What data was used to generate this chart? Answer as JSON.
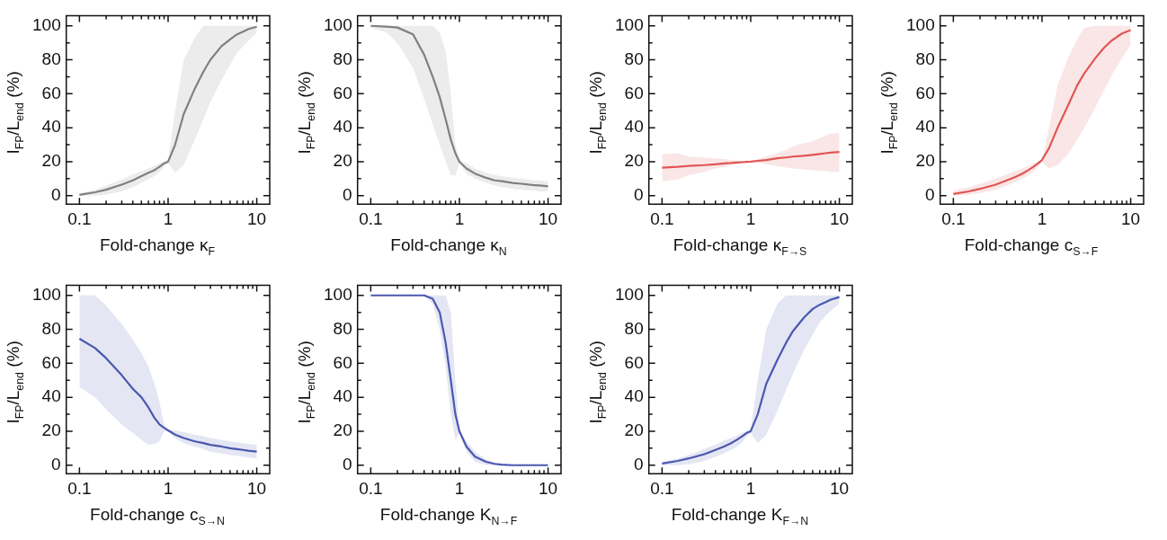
{
  "chart_data": [
    {
      "type": "line",
      "xlabel": "Fold-change κ$_{F}$",
      "ylabel": "I$_{FP}$/L$_{end}$ (%)",
      "log": "x",
      "xlim": [
        0.071,
        14
      ],
      "ylim": [
        -5,
        106
      ],
      "xticks": [
        0.1,
        {
          "value": 0.2,
          "label": null
        },
        {
          "value": 0.3,
          "label": null
        },
        {
          "value": 0.4,
          "label": null
        },
        {
          "value": 0.5,
          "label": null
        },
        {
          "value": 0.6,
          "label": null
        },
        {
          "value": 0.7,
          "label": null
        },
        {
          "value": 0.8,
          "label": null
        },
        {
          "value": 0.9,
          "label": null
        },
        1,
        {
          "value": 2,
          "label": null
        },
        {
          "value": 3,
          "label": null
        },
        {
          "value": 4,
          "label": null
        },
        {
          "value": 5,
          "label": null
        },
        {
          "value": 6,
          "label": null
        },
        {
          "value": 7,
          "label": null
        },
        {
          "value": 8,
          "label": null
        },
        {
          "value": 9,
          "label": null
        },
        10
      ],
      "yticks": [
        0,
        {
          "value": 10,
          "label": null
        },
        20,
        {
          "value": 30,
          "label": null
        },
        40,
        {
          "value": 50,
          "label": null
        },
        60,
        {
          "value": 70,
          "label": null
        },
        80,
        {
          "value": 90,
          "label": null
        },
        100
      ],
      "x": [
        0.1,
        0.15,
        0.2,
        0.3,
        0.4,
        0.5,
        0.6,
        0.7,
        0.8,
        0.9,
        1,
        1.2,
        1.5,
        2,
        2.5,
        3,
        4,
        5,
        6,
        7,
        8,
        10
      ],
      "series": [
        {
          "color": "#808080",
          "values": [
            0.5,
            2,
            3.5,
            6.5,
            9,
            11.5,
            13.5,
            15,
            17,
            19,
            20,
            30,
            48,
            63,
            73,
            80,
            88,
            92,
            95,
            96.5,
            98,
            99.5
          ],
          "lower": [
            0,
            0,
            0.5,
            2.5,
            5,
            7.5,
            9.5,
            11.5,
            14,
            17,
            19,
            13.5,
            18,
            33,
            45,
            55,
            68,
            77,
            84,
            88,
            91,
            96
          ],
          "upper": [
            1.5,
            3.5,
            6,
            9.5,
            12.5,
            14.5,
            16,
            17.5,
            19,
            20,
            21,
            50,
            80,
            93,
            100,
            100,
            100,
            100,
            100,
            100,
            100,
            100
          ]
        }
      ]
    },
    {
      "type": "line",
      "xlabel": "Fold-change κ$_{N}$",
      "ylabel": "I$_{FP}$/L$_{end}$ (%)",
      "log": "x",
      "xlim": [
        0.071,
        14
      ],
      "ylim": [
        -5,
        106
      ],
      "xticks": [
        0.1,
        {
          "value": 0.2,
          "label": null
        },
        {
          "value": 0.3,
          "label": null
        },
        {
          "value": 0.4,
          "label": null
        },
        {
          "value": 0.5,
          "label": null
        },
        {
          "value": 0.6,
          "label": null
        },
        {
          "value": 0.7,
          "label": null
        },
        {
          "value": 0.8,
          "label": null
        },
        {
          "value": 0.9,
          "label": null
        },
        1,
        {
          "value": 2,
          "label": null
        },
        {
          "value": 3,
          "label": null
        },
        {
          "value": 4,
          "label": null
        },
        {
          "value": 5,
          "label": null
        },
        {
          "value": 6,
          "label": null
        },
        {
          "value": 7,
          "label": null
        },
        {
          "value": 8,
          "label": null
        },
        {
          "value": 9,
          "label": null
        },
        10
      ],
      "yticks": [
        0,
        {
          "value": 10,
          "label": null
        },
        20,
        {
          "value": 30,
          "label": null
        },
        40,
        {
          "value": 50,
          "label": null
        },
        60,
        {
          "value": 70,
          "label": null
        },
        80,
        {
          "value": 90,
          "label": null
        },
        100
      ],
      "x": [
        0.1,
        0.15,
        0.2,
        0.3,
        0.4,
        0.5,
        0.6,
        0.7,
        0.8,
        0.9,
        1,
        1.2,
        1.5,
        2,
        2.5,
        3,
        4,
        5,
        6,
        7,
        8,
        10
      ],
      "series": [
        {
          "color": "#808080",
          "values": [
            100,
            99.5,
            99,
            95,
            83,
            70,
            58,
            45,
            33,
            25,
            20,
            16,
            13,
            10.5,
            9,
            8.5,
            7.5,
            7,
            6.5,
            6.2,
            6,
            5.5
          ],
          "lower": [
            99,
            96,
            90,
            75,
            57,
            42,
            30,
            20,
            12,
            12,
            19,
            13,
            10,
            7.5,
            6,
            5,
            4,
            3.5,
            3,
            3,
            2.5,
            2.5
          ],
          "upper": [
            100,
            100,
            100,
            100,
            100,
            100,
            96,
            85,
            60,
            30,
            21,
            19,
            16,
            13.5,
            12,
            11.5,
            10.5,
            10,
            9.5,
            9,
            9,
            8.5
          ]
        }
      ]
    },
    {
      "type": "line",
      "xlabel": "Fold-change κ$_{F→S}$",
      "ylabel": "I$_{FP}$/L$_{end}$ (%)",
      "log": "x",
      "xlim": [
        0.071,
        14
      ],
      "ylim": [
        -5,
        106
      ],
      "xticks": [
        0.1,
        {
          "value": 0.2,
          "label": null
        },
        {
          "value": 0.3,
          "label": null
        },
        {
          "value": 0.4,
          "label": null
        },
        {
          "value": 0.5,
          "label": null
        },
        {
          "value": 0.6,
          "label": null
        },
        {
          "value": 0.7,
          "label": null
        },
        {
          "value": 0.8,
          "label": null
        },
        {
          "value": 0.9,
          "label": null
        },
        1,
        {
          "value": 2,
          "label": null
        },
        {
          "value": 3,
          "label": null
        },
        {
          "value": 4,
          "label": null
        },
        {
          "value": 5,
          "label": null
        },
        {
          "value": 6,
          "label": null
        },
        {
          "value": 7,
          "label": null
        },
        {
          "value": 8,
          "label": null
        },
        {
          "value": 9,
          "label": null
        },
        10
      ],
      "yticks": [
        0,
        {
          "value": 10,
          "label": null
        },
        20,
        {
          "value": 30,
          "label": null
        },
        40,
        {
          "value": 50,
          "label": null
        },
        60,
        {
          "value": 70,
          "label": null
        },
        80,
        {
          "value": 90,
          "label": null
        },
        100
      ],
      "x": [
        0.1,
        0.15,
        0.2,
        0.3,
        0.4,
        0.5,
        0.6,
        0.7,
        0.8,
        0.9,
        1,
        1.2,
        1.5,
        2,
        2.5,
        3,
        4,
        5,
        6,
        7,
        8,
        10
      ],
      "series": [
        {
          "color": "#e05555",
          "values": [
            16.5,
            17,
            17.5,
            18,
            18.5,
            19,
            19.2,
            19.5,
            19.7,
            19.9,
            20,
            20.5,
            21,
            22,
            22.5,
            23,
            23.5,
            24,
            24.5,
            25,
            25.3,
            25.7
          ],
          "lower": [
            8.5,
            9.5,
            12,
            14,
            16,
            17,
            18,
            18.5,
            19,
            19.5,
            20,
            19.5,
            18.5,
            17.5,
            16.5,
            16,
            15.5,
            15,
            14.5,
            14.5,
            14,
            14
          ],
          "upper": [
            24.5,
            25,
            23,
            22.5,
            22,
            21.5,
            21,
            20.8,
            20.5,
            20.2,
            20,
            21.5,
            23,
            25,
            27,
            29,
            31,
            32,
            34,
            35.5,
            36.5,
            37
          ]
        }
      ]
    },
    {
      "type": "line",
      "xlabel": "Fold-change c$_{S→F}$",
      "ylabel": "I$_{FP}$/L$_{end}$ (%)",
      "log": "x",
      "xlim": [
        0.071,
        14
      ],
      "ylim": [
        -5,
        106
      ],
      "xticks": [
        0.1,
        {
          "value": 0.2,
          "label": null
        },
        {
          "value": 0.3,
          "label": null
        },
        {
          "value": 0.4,
          "label": null
        },
        {
          "value": 0.5,
          "label": null
        },
        {
          "value": 0.6,
          "label": null
        },
        {
          "value": 0.7,
          "label": null
        },
        {
          "value": 0.8,
          "label": null
        },
        {
          "value": 0.9,
          "label": null
        },
        1,
        {
          "value": 2,
          "label": null
        },
        {
          "value": 3,
          "label": null
        },
        {
          "value": 4,
          "label": null
        },
        {
          "value": 5,
          "label": null
        },
        {
          "value": 6,
          "label": null
        },
        {
          "value": 7,
          "label": null
        },
        {
          "value": 8,
          "label": null
        },
        {
          "value": 9,
          "label": null
        },
        10
      ],
      "yticks": [
        0,
        {
          "value": 10,
          "label": null
        },
        20,
        {
          "value": 30,
          "label": null
        },
        40,
        {
          "value": 50,
          "label": null
        },
        60,
        {
          "value": 70,
          "label": null
        },
        80,
        {
          "value": 90,
          "label": null
        },
        100
      ],
      "x": [
        0.1,
        0.15,
        0.2,
        0.3,
        0.4,
        0.5,
        0.6,
        0.7,
        0.8,
        0.9,
        1,
        1.2,
        1.5,
        2,
        2.5,
        3,
        4,
        5,
        6,
        7,
        8,
        10
      ],
      "series": [
        {
          "color": "#e05555",
          "values": [
            1,
            2.5,
            4,
            6.5,
            9,
            11,
            13,
            15,
            17,
            19,
            21,
            28,
            40,
            54,
            65,
            72,
            81,
            87,
            91,
            93.5,
            95.5,
            97.5
          ],
          "lower": [
            0,
            0.5,
            1.5,
            3.5,
            6,
            8,
            10,
            12,
            14,
            17,
            20,
            16,
            18,
            25,
            33,
            40,
            52,
            62,
            70,
            76,
            81,
            89
          ],
          "upper": [
            3,
            5,
            7,
            10,
            12.5,
            14.5,
            16,
            17.5,
            19,
            20,
            21,
            40,
            65,
            82,
            92,
            99,
            100,
            100,
            100,
            100,
            100,
            100
          ]
        }
      ]
    },
    {
      "type": "line",
      "xlabel": "Fold-change c$_{S→N}$",
      "ylabel": "I$_{FP}$/L$_{end}$ (%)",
      "log": "x",
      "xlim": [
        0.071,
        14
      ],
      "ylim": [
        -5,
        106
      ],
      "xticks": [
        0.1,
        {
          "value": 0.2,
          "label": null
        },
        {
          "value": 0.3,
          "label": null
        },
        {
          "value": 0.4,
          "label": null
        },
        {
          "value": 0.5,
          "label": null
        },
        {
          "value": 0.6,
          "label": null
        },
        {
          "value": 0.7,
          "label": null
        },
        {
          "value": 0.8,
          "label": null
        },
        {
          "value": 0.9,
          "label": null
        },
        1,
        {
          "value": 2,
          "label": null
        },
        {
          "value": 3,
          "label": null
        },
        {
          "value": 4,
          "label": null
        },
        {
          "value": 5,
          "label": null
        },
        {
          "value": 6,
          "label": null
        },
        {
          "value": 7,
          "label": null
        },
        {
          "value": 8,
          "label": null
        },
        {
          "value": 9,
          "label": null
        },
        10
      ],
      "yticks": [
        0,
        {
          "value": 10,
          "label": null
        },
        20,
        {
          "value": 30,
          "label": null
        },
        40,
        {
          "value": 50,
          "label": null
        },
        60,
        {
          "value": 70,
          "label": null
        },
        80,
        {
          "value": 90,
          "label": null
        },
        100
      ],
      "x": [
        0.1,
        0.15,
        0.2,
        0.3,
        0.4,
        0.5,
        0.6,
        0.7,
        0.8,
        0.9,
        1,
        1.2,
        1.5,
        2,
        2.5,
        3,
        4,
        5,
        6,
        7,
        8,
        10
      ],
      "series": [
        {
          "color": "#4a58b0",
          "values": [
            74.5,
            69,
            63,
            53,
            45,
            40,
            34,
            28,
            24,
            22,
            20.5,
            18,
            16,
            14,
            13,
            12,
            11,
            10,
            9.5,
            9,
            8.5,
            8
          ],
          "lower": [
            46,
            40,
            33,
            24,
            19,
            15,
            12,
            12.5,
            14,
            20,
            20,
            16,
            13,
            11,
            9.5,
            8,
            7,
            6,
            5.5,
            5,
            4.5,
            4
          ],
          "upper": [
            100,
            100,
            94,
            83,
            74,
            66,
            58,
            48,
            37,
            24,
            21,
            20.5,
            19.5,
            18,
            17,
            16,
            15,
            14,
            13.5,
            13,
            12.5,
            12
          ]
        }
      ]
    },
    {
      "type": "line",
      "xlabel": "Fold-change K$_{N→F}$",
      "ylabel": "I$_{FP}$/L$_{end}$ (%)",
      "log": "x",
      "xlim": [
        0.071,
        14
      ],
      "ylim": [
        -5,
        106
      ],
      "xticks": [
        0.1,
        {
          "value": 0.2,
          "label": null
        },
        {
          "value": 0.3,
          "label": null
        },
        {
          "value": 0.4,
          "label": null
        },
        {
          "value": 0.5,
          "label": null
        },
        {
          "value": 0.6,
          "label": null
        },
        {
          "value": 0.7,
          "label": null
        },
        {
          "value": 0.8,
          "label": null
        },
        {
          "value": 0.9,
          "label": null
        },
        1,
        {
          "value": 2,
          "label": null
        },
        {
          "value": 3,
          "label": null
        },
        {
          "value": 4,
          "label": null
        },
        {
          "value": 5,
          "label": null
        },
        {
          "value": 6,
          "label": null
        },
        {
          "value": 7,
          "label": null
        },
        {
          "value": 8,
          "label": null
        },
        {
          "value": 9,
          "label": null
        },
        10
      ],
      "yticks": [
        0,
        {
          "value": 10,
          "label": null
        },
        20,
        {
          "value": 30,
          "label": null
        },
        40,
        {
          "value": 50,
          "label": null
        },
        60,
        {
          "value": 70,
          "label": null
        },
        80,
        {
          "value": 90,
          "label": null
        },
        100
      ],
      "x": [
        0.1,
        0.15,
        0.2,
        0.3,
        0.4,
        0.5,
        0.6,
        0.7,
        0.8,
        0.9,
        1,
        1.2,
        1.5,
        2,
        2.5,
        3,
        4,
        5,
        6,
        7,
        8,
        10
      ],
      "series": [
        {
          "color": "#4a58b0",
          "values": [
            100,
            100,
            100,
            100,
            100,
            98,
            90,
            72,
            50,
            30,
            20,
            11,
            5,
            2,
            0.8,
            0.3,
            0,
            0,
            0,
            0,
            0,
            0
          ],
          "lower": [
            100,
            100,
            100,
            100,
            100,
            95,
            80,
            58,
            30,
            15,
            19,
            8,
            2,
            0,
            0,
            0,
            0,
            0,
            0,
            0,
            0,
            0
          ],
          "upper": [
            100,
            100,
            100,
            100,
            100,
            100,
            100,
            100,
            90,
            50,
            21,
            14,
            8,
            3.5,
            1.5,
            0.5,
            0,
            0,
            0,
            0,
            0,
            0
          ]
        }
      ]
    },
    {
      "type": "line",
      "xlabel": "Fold-change K$_{F→N}$",
      "ylabel": "I$_{FP}$/L$_{end}$ (%)",
      "log": "x",
      "xlim": [
        0.071,
        14
      ],
      "ylim": [
        -5,
        106
      ],
      "xticks": [
        0.1,
        {
          "value": 0.2,
          "label": null
        },
        {
          "value": 0.3,
          "label": null
        },
        {
          "value": 0.4,
          "label": null
        },
        {
          "value": 0.5,
          "label": null
        },
        {
          "value": 0.6,
          "label": null
        },
        {
          "value": 0.7,
          "label": null
        },
        {
          "value": 0.8,
          "label": null
        },
        {
          "value": 0.9,
          "label": null
        },
        1,
        {
          "value": 2,
          "label": null
        },
        {
          "value": 3,
          "label": null
        },
        {
          "value": 4,
          "label": null
        },
        {
          "value": 5,
          "label": null
        },
        {
          "value": 6,
          "label": null
        },
        {
          "value": 7,
          "label": null
        },
        {
          "value": 8,
          "label": null
        },
        {
          "value": 9,
          "label": null
        },
        10
      ],
      "yticks": [
        0,
        {
          "value": 10,
          "label": null
        },
        20,
        {
          "value": 30,
          "label": null
        },
        40,
        {
          "value": 50,
          "label": null
        },
        60,
        {
          "value": 70,
          "label": null
        },
        80,
        {
          "value": 90,
          "label": null
        },
        100
      ],
      "x": [
        0.1,
        0.15,
        0.2,
        0.3,
        0.4,
        0.5,
        0.6,
        0.7,
        0.8,
        0.9,
        1,
        1.2,
        1.5,
        2,
        2.5,
        3,
        4,
        5,
        6,
        7,
        8,
        10
      ],
      "series": [
        {
          "color": "#4a58b0",
          "values": [
            1,
            2.5,
            4,
            6.5,
            9,
            11,
            13,
            15,
            17,
            19,
            20,
            30,
            48,
            62,
            72,
            79,
            87,
            92,
            94.5,
            96,
            97.5,
            99
          ],
          "lower": [
            0,
            0,
            0.5,
            2.5,
            5,
            7,
            9,
            11,
            13.5,
            17,
            19,
            13,
            18,
            32,
            44,
            54,
            68,
            77,
            84,
            88,
            91,
            95
          ],
          "upper": [
            2,
            4,
            6,
            9.5,
            12,
            14.5,
            16,
            17.5,
            19,
            20,
            21,
            50,
            80,
            95,
            100,
            100,
            100,
            100,
            100,
            100,
            100,
            100
          ]
        }
      ]
    }
  ]
}
